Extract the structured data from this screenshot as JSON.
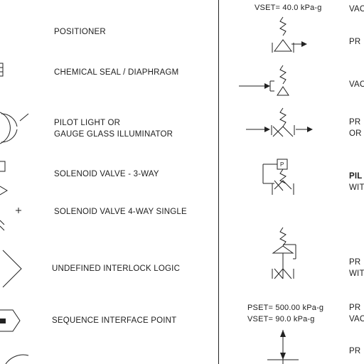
{
  "left_labels": {
    "positioner": "POSITIONER",
    "chemical_seal": "CHEMICAL SEAL / DIAPHRAGM",
    "pilot_light_1": "PILOT LIGHT OR",
    "pilot_light_2": "GAUGE GLASS ILLUMINATOR",
    "solenoid_3way": "SOLENOID VALVE - 3-WAY",
    "solenoid_4way": "SOLENOID VALVE 4-WAY SINGLE",
    "interlock": "UNDEFINED INTERLOCK LOGIC",
    "sequence": "SEQUENCE INTERFACE POINT"
  },
  "right_annotations": {
    "vset_top": "VSET= 40.0 kPa-g",
    "pset": "PSET= 500.00 kPa-g",
    "vset_bottom": "VSET= 90.0 kPa-g"
  },
  "right_labels": {
    "r1": "VAC",
    "r2": "PR",
    "r3": "VAC",
    "r4a": "PR",
    "r4b": "OR",
    "r5a": "PIL",
    "r5b": "WIT",
    "r6a": "PR",
    "r6b": "WIT",
    "r7a": "PR",
    "r7b": "VAC",
    "r8": "PR"
  },
  "symbol_text": {
    "pilot_box_letter": "P"
  }
}
